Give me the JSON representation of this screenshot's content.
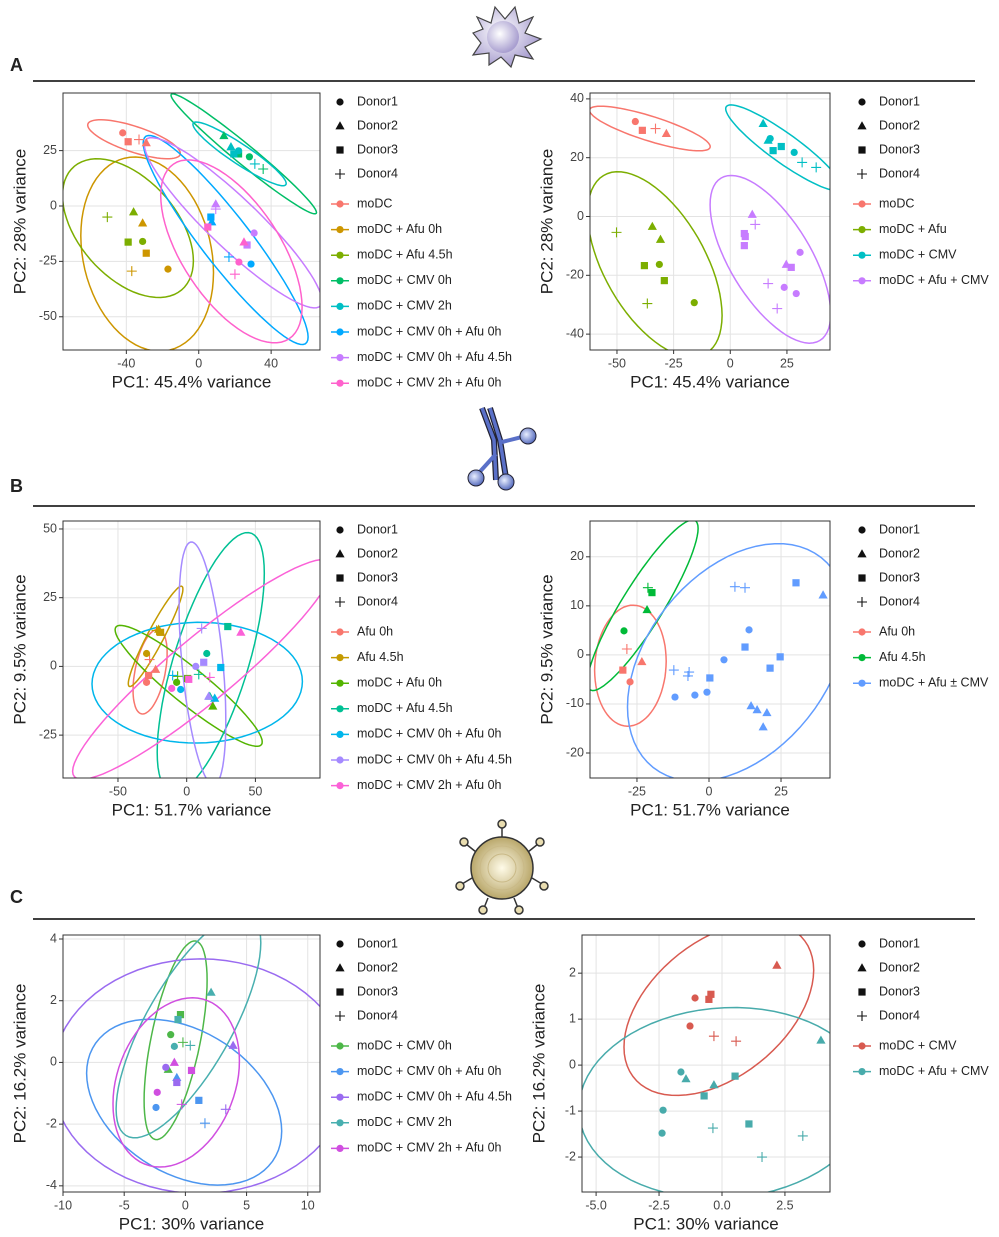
{
  "panel_labels": [
    "A",
    "B",
    "C"
  ],
  "chart_data": [
    {
      "type": "scatter",
      "xlabel": "PC1: 45.4% variance",
      "ylabel": "PC2: 28% variance",
      "xlim": [
        -75,
        67
      ],
      "ylim": [
        -65,
        51
      ],
      "xticks": [
        -40,
        0,
        40
      ],
      "yticks": [
        -50,
        -25,
        0,
        25
      ],
      "grid": true,
      "shape_legend": [
        "Donor1",
        "Donor2",
        "Donor3",
        "Donor4"
      ],
      "series": [
        {
          "name": "moDC",
          "color": "#F8766D",
          "x": [
            -42,
            -39,
            -29,
            -33
          ],
          "y": [
            33,
            29,
            28.5,
            30
          ],
          "donor": [
            "Donor1",
            "Donor3",
            "Donor2",
            "Donor4"
          ]
        },
        {
          "name": "moDC + Afu 0h",
          "color": "#CD9600",
          "x": [
            -37,
            -17,
            -29,
            -31
          ],
          "y": [
            -29.4,
            -28.5,
            -21.3,
            -7.7
          ],
          "donor": [
            "Donor4",
            "Donor1",
            "Donor3",
            "Donor2"
          ]
        },
        {
          "name": "moDC + Afu 4.5h",
          "color": "#7CAE00",
          "x": [
            -50.5,
            -36,
            -31,
            -39
          ],
          "y": [
            -5,
            -2.7,
            -16,
            -16.3
          ],
          "donor": [
            "Donor4",
            "Donor2",
            "Donor1",
            "Donor3"
          ]
        },
        {
          "name": "moDC + CMV 0h",
          "color": "#00BE67",
          "x": [
            13.9,
            22,
            28,
            35.6
          ],
          "y": [
            31.7,
            23.5,
            22.2,
            16.7
          ],
          "donor": [
            "Donor2",
            "Donor3",
            "Donor1",
            "Donor4"
          ]
        },
        {
          "name": "moDC + CMV 2h",
          "color": "#00BFC4",
          "x": [
            17.8,
            19.4,
            22,
            31
          ],
          "y": [
            26.7,
            23.5,
            24.9,
            19
          ],
          "donor": [
            "Donor2",
            "Donor3",
            "Donor1",
            "Donor4"
          ]
        },
        {
          "name": "moDC + CMV 0h + Afu 0h",
          "color": "#00A9FF",
          "x": [
            6.7,
            7.2,
            16.7,
            28.9
          ],
          "y": [
            -5,
            -7.2,
            -23,
            -26.2
          ],
          "donor": [
            "Donor3",
            "Donor2",
            "Donor4",
            "Donor1"
          ]
        },
        {
          "name": "moDC + CMV 0h + Afu 4.5h",
          "color": "#C77CFF",
          "x": [
            9.4,
            9.4,
            26.7,
            30.6
          ],
          "y": [
            0.9,
            -1.4,
            -17.6,
            -12.2
          ],
          "donor": [
            "Donor2",
            "Donor4",
            "Donor3",
            "Donor1"
          ]
        },
        {
          "name": "moDC + CMV 2h + Afu 0h",
          "color": "#FF61CC",
          "x": [
            5,
            25,
            22.2,
            20
          ],
          "y": [
            -9.5,
            -16.3,
            -25.3,
            -30.8
          ],
          "donor": [
            "Donor3",
            "Donor2",
            "Donor1",
            "Donor4"
          ]
        }
      ]
    },
    {
      "type": "scatter",
      "xlabel": "PC1: 45.4% variance",
      "ylabel": "PC2: 28% variance",
      "xlim": [
        -61.9,
        44
      ],
      "ylim": [
        -45.4,
        42
      ],
      "xticks": [
        -50,
        -25,
        0,
        25
      ],
      "yticks": [
        -40,
        -20,
        0,
        20,
        40
      ],
      "grid": true,
      "shape_legend": [
        "Donor1",
        "Donor2",
        "Donor3",
        "Donor4"
      ],
      "series": [
        {
          "name": "moDC",
          "color": "#F8766D",
          "x": [
            -41.9,
            -38.8,
            -33,
            -28.2
          ],
          "y": [
            32.3,
            29.3,
            29.9,
            28.2
          ],
          "donor": [
            "Donor1",
            "Donor3",
            "Donor4",
            "Donor2"
          ]
        },
        {
          "name": "moDC + Afu",
          "color": "#7CAE00",
          "x": [
            -50.2,
            -34.4,
            -30.8,
            -31.3,
            -37.9,
            -29.1,
            -15.9,
            -36.6
          ],
          "y": [
            -5.4,
            -3.4,
            -7.8,
            -16.3,
            -16.7,
            -21.8,
            -29.3,
            -29.6
          ],
          "donor": [
            "Donor4",
            "Donor2",
            "Donor2",
            "Donor1",
            "Donor3",
            "Donor3",
            "Donor1",
            "Donor4"
          ]
        },
        {
          "name": "moDC + CMV",
          "color": "#00BFC4",
          "x": [
            14.5,
            16.7,
            17.6,
            28.2,
            18.9,
            22.5,
            31.7,
            37.9
          ],
          "y": [
            31.6,
            25.9,
            26.5,
            21.8,
            22.4,
            23.8,
            18.4,
            16.7
          ],
          "donor": [
            "Donor2",
            "Donor2",
            "Donor1",
            "Donor1",
            "Donor3",
            "Donor3",
            "Donor4",
            "Donor4"
          ]
        },
        {
          "name": "moDC + Afu + CMV",
          "color": "#C77CFF",
          "x": [
            9.7,
            11,
            6.2,
            6.6,
            6.2,
            24.7,
            26.9,
            30.8,
            29.1,
            23.8,
            16.7,
            20.7
          ],
          "y": [
            0.7,
            -2.7,
            -5.8,
            -6.8,
            -9.9,
            -16.3,
            -17.3,
            -12.2,
            -26.2,
            -24.1,
            -22.8,
            -31.3
          ],
          "donor": [
            "Donor2",
            "Donor4",
            "Donor3",
            "Donor3",
            "Donor3",
            "Donor2",
            "Donor3",
            "Donor1",
            "Donor1",
            "Donor1",
            "Donor4",
            "Donor4"
          ]
        }
      ]
    },
    {
      "type": "scatter",
      "xlabel": "PC1: 51.7% variance",
      "ylabel": "PC2: 9.5% variance",
      "xlim": [
        -90,
        97
      ],
      "ylim": [
        -40.6,
        52.9
      ],
      "xticks": [
        -50,
        0,
        50
      ],
      "yticks": [
        -25,
        0,
        25,
        50
      ],
      "grid": true,
      "shape_legend": [
        "Donor1",
        "Donor2",
        "Donor3",
        "Donor4"
      ],
      "series": [
        {
          "name": "Afu 0h",
          "color": "#F8766D",
          "x": [
            -29.2,
            -27.7,
            -22.6,
            -27
          ],
          "y": [
            -5.8,
            -3.3,
            -1.1,
            2.5
          ],
          "donor": [
            "Donor1",
            "Donor3",
            "Donor2",
            "Donor4"
          ]
        },
        {
          "name": "Afu 4.5h",
          "color": "#C49A00",
          "x": [
            -29.2,
            -20.4,
            -19,
            -21.9
          ],
          "y": [
            4.7,
            13.5,
            12.4,
            13.1
          ],
          "donor": [
            "Donor1",
            "Donor2",
            "Donor3",
            "Donor4"
          ]
        },
        {
          "name": "moDC + Afu 0h",
          "color": "#53B400",
          "x": [
            -7.3,
            0.7,
            -6.6,
            19
          ],
          "y": [
            -5.8,
            -4.4,
            -3.6,
            -14.5
          ],
          "donor": [
            "Donor1",
            "Donor3",
            "Donor4",
            "Donor2"
          ]
        },
        {
          "name": "moDC + Afu 4.5h",
          "color": "#00C094",
          "x": [
            14.6,
            29.9,
            16.8,
            8.8
          ],
          "y": [
            4.7,
            14.5,
            -10.9,
            -2.9
          ],
          "donor": [
            "Donor1",
            "Donor3",
            "Donor2",
            "Donor4"
          ]
        },
        {
          "name": "moDC + CMV 0h + Afu 0h",
          "color": "#00B6EB",
          "x": [
            -4.4,
            24.8,
            20.4,
            -10.2
          ],
          "y": [
            -8.4,
            -0.4,
            -11.6,
            -3.3
          ],
          "donor": [
            "Donor1",
            "Donor3",
            "Donor2",
            "Donor4"
          ]
        },
        {
          "name": "moDC + CMV 0h + Afu 4.5h",
          "color": "#A58AFF",
          "x": [
            6.6,
            12.4,
            16,
            10.9
          ],
          "y": [
            0,
            1.5,
            -10.9,
            13.8
          ],
          "donor": [
            "Donor1",
            "Donor3",
            "Donor2",
            "Donor4"
          ]
        },
        {
          "name": "moDC + CMV 2h + Afu 0h",
          "color": "#FB61D7",
          "x": [
            -10.9,
            1.5,
            39.4,
            16.8
          ],
          "y": [
            -8,
            -4.7,
            12.4,
            -4
          ],
          "donor": [
            "Donor1",
            "Donor3",
            "Donor2",
            "Donor4"
          ]
        }
      ]
    },
    {
      "type": "scatter",
      "xlabel": "PC1: 51.7% variance",
      "ylabel": "PC2: 9.5% variance",
      "xlim": [
        -41.3,
        42
      ],
      "ylim": [
        -25.1,
        27.3
      ],
      "xticks": [
        -25,
        0,
        25
      ],
      "yticks": [
        -20,
        -10,
        0,
        10,
        20
      ],
      "grid": true,
      "shape_legend": [
        "Donor1",
        "Donor2",
        "Donor3",
        "Donor4"
      ],
      "series": [
        {
          "name": "Afu 0h",
          "color": "#F8766D",
          "x": [
            -27.4,
            -29.9,
            -23.3,
            -28.5
          ],
          "y": [
            -5.5,
            -3.1,
            -1.4,
            1.2
          ],
          "donor": [
            "Donor1",
            "Donor3",
            "Donor2",
            "Donor4"
          ]
        },
        {
          "name": "Afu 4.5h",
          "color": "#00BA38",
          "x": [
            -29.5,
            -21.5,
            -19.8,
            -21.2
          ],
          "y": [
            4.9,
            9.2,
            12.7,
            13.7
          ],
          "donor": [
            "Donor1",
            "Donor2",
            "Donor3",
            "Donor4"
          ]
        },
        {
          "name": "moDC + Afu ± CMV",
          "color": "#619CFF",
          "x": [
            30.2,
            39.6,
            9,
            12.5,
            13.9,
            12.5,
            24.7,
            21.2,
            0.3,
            5.2,
            -12.2,
            -6.9,
            -7.3,
            -11.8,
            -4.9,
            -0.7,
            14.6,
            16.7,
            20.1,
            18.8
          ],
          "y": [
            14.7,
            12.2,
            13.9,
            13.7,
            5.1,
            1.6,
            -0.4,
            -2.7,
            -4.7,
            -1,
            -3.1,
            -3.5,
            -4.3,
            -8.6,
            -8.2,
            -7.6,
            -10.4,
            -11.2,
            -11.8,
            -14.7
          ],
          "donor": [
            "Donor3",
            "Donor2",
            "Donor4",
            "Donor4",
            "Donor1",
            "Donor3",
            "Donor3",
            "Donor3",
            "Donor3",
            "Donor1",
            "Donor4",
            "Donor4",
            "Donor4",
            "Donor1",
            "Donor1",
            "Donor1",
            "Donor2",
            "Donor2",
            "Donor2",
            "Donor2"
          ]
        }
      ]
    },
    {
      "type": "scatter",
      "xlabel": "PC1: 30% variance",
      "ylabel": "PC2: 16.2% variance",
      "xlim": [
        -10,
        11
      ],
      "ylim": [
        -4.2,
        4.13
      ],
      "xticks": [
        -10,
        -5,
        0,
        5,
        10
      ],
      "yticks": [
        -4,
        -2,
        0,
        2,
        4
      ],
      "grid": true,
      "shape_legend": [
        "Donor1",
        "Donor2",
        "Donor3",
        "Donor4"
      ],
      "series": [
        {
          "name": "moDC + CMV 0h",
          "color": "#4DB748",
          "x": [
            -0.4,
            -1.2,
            -1.4,
            -0.2
          ],
          "y": [
            1.55,
            0.9,
            -0.23,
            0.65
          ],
          "donor": [
            "Donor3",
            "Donor1",
            "Donor2",
            "Donor4"
          ]
        },
        {
          "name": "moDC + CMV 0h + Afu 0h",
          "color": "#4C96F0",
          "x": [
            -2.4,
            1.1,
            1.6,
            -0.7
          ],
          "y": [
            -1.46,
            -1.23,
            -1.97,
            -0.49
          ],
          "donor": [
            "Donor1",
            "Donor3",
            "Donor4",
            "Donor2"
          ]
        },
        {
          "name": "moDC + CMV 0h + Afu 4.5h",
          "color": "#9A6BF0",
          "x": [
            -1.6,
            -0.7,
            3.3,
            3.9
          ],
          "y": [
            -0.16,
            -0.65,
            -1.52,
            0.55
          ],
          "donor": [
            "Donor1",
            "Donor3",
            "Donor4",
            "Donor2"
          ]
        },
        {
          "name": "moDC + CMV 2h",
          "color": "#48AFAF",
          "x": [
            2.1,
            -0.6,
            -0.9,
            0.4
          ],
          "y": [
            2.27,
            1.39,
            0.52,
            0.55
          ],
          "donor": [
            "Donor2",
            "Donor3",
            "Donor1",
            "Donor4"
          ]
        },
        {
          "name": "moDC + CMV 2h + Afu 0h",
          "color": "#D04FE0",
          "x": [
            -2.3,
            0.5,
            -0.3,
            -0.9
          ],
          "y": [
            -0.97,
            -0.26,
            -1.36,
            0
          ],
          "donor": [
            "Donor1",
            "Donor3",
            "Donor4",
            "Donor2"
          ]
        }
      ]
    },
    {
      "type": "scatter",
      "xlabel": "PC1: 30% variance",
      "ylabel": "PC2: 16.2% variance",
      "xlim": [
        -5.56,
        4.29
      ],
      "ylim": [
        -2.76,
        2.83
      ],
      "xticks": [
        {
          "value": -5,
          "label": "-5.0"
        },
        {
          "value": -2.5,
          "label": "-2.5"
        },
        {
          "value": 0,
          "label": "0.0"
        },
        {
          "value": 2.5,
          "label": "2.5"
        }
      ],
      "yticks": [
        -2,
        -1,
        0,
        1,
        2
      ],
      "grid": true,
      "shape_legend": [
        "Donor1",
        "Donor2",
        "Donor3",
        "Donor4"
      ],
      "series": [
        {
          "name": "moDC + CMV",
          "color": "#D85A50",
          "x": [
            -1.07,
            -0.44,
            -0.52,
            -1.27,
            -0.32,
            0.56,
            2.18
          ],
          "y": [
            1.46,
            1.54,
            1.43,
            0.85,
            0.63,
            0.52,
            2.17
          ],
          "donor": [
            "Donor1",
            "Donor3",
            "Donor3",
            "Donor1",
            "Donor4",
            "Donor4",
            "Donor2"
          ]
        },
        {
          "name": "moDC + Afu + CMV",
          "color": "#48ABAB",
          "x": [
            3.93,
            -1.43,
            -1.63,
            -0.32,
            0.52,
            -0.71,
            -2.34,
            -2.38,
            1.07,
            -0.36,
            3.21,
            1.59
          ],
          "y": [
            0.54,
            -0.3,
            -0.15,
            -0.43,
            -0.24,
            -0.67,
            -0.98,
            -1.48,
            -1.28,
            -1.37,
            -1.54,
            -2
          ],
          "donor": [
            "Donor2",
            "Donor2",
            "Donor1",
            "Donor2",
            "Donor3",
            "Donor3",
            "Donor1",
            "Donor1",
            "Donor3",
            "Donor4",
            "Donor4",
            "Donor4"
          ]
        }
      ]
    }
  ]
}
